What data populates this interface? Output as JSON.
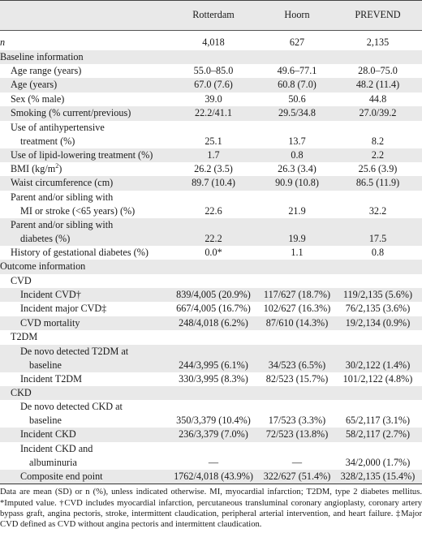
{
  "header": {
    "col0": "",
    "col1": "Rotterdam",
    "col2": "Hoorn",
    "col3": "PREVEND"
  },
  "n_row": {
    "label": "n",
    "values": [
      "4,018",
      "627",
      "2,135"
    ]
  },
  "sections": {
    "baseline": "Baseline information",
    "outcome": "Outcome information",
    "cvd": "CVD",
    "t2dm": "T2DM",
    "ckd": "CKD"
  },
  "rows": {
    "age_range": {
      "label": "Age range (years)",
      "values": [
        "55.0–85.0",
        "49.6–77.1",
        "28.0–75.0"
      ]
    },
    "age": {
      "label": "Age (years)",
      "values": [
        "67.0 (7.6)",
        "60.8 (7.0)",
        "48.2 (11.4)"
      ]
    },
    "sex": {
      "label": "Sex (% male)",
      "values": [
        "39.0",
        "50.6",
        "44.8"
      ]
    },
    "smoking": {
      "label": "Smoking (% current/previous)",
      "values": [
        "22.2/41.1",
        "29.5/34.8",
        "27.0/39.2"
      ]
    },
    "antihyp": {
      "label1": "Use of antihypertensive",
      "label2": "treatment (%)",
      "values": [
        "25.1",
        "13.7",
        "8.2"
      ]
    },
    "lipid": {
      "label": "Use of lipid-lowering treatment (%)",
      "values": [
        "1.7",
        "0.8",
        "2.2"
      ]
    },
    "bmi": {
      "label": "BMI (kg/m",
      "sup": "2",
      "label_end": ")",
      "values": [
        "26.2 (3.5)",
        "26.3 (3.4)",
        "25.6 (3.9)"
      ]
    },
    "waist": {
      "label": "Waist circumference (cm)",
      "values": [
        "89.7 (10.4)",
        "90.9 (10.8)",
        "86.5 (11.9)"
      ]
    },
    "parent_mi": {
      "label1": "Parent and/or sibling with",
      "label2": "MI or stroke (<65 years) (%)",
      "values": [
        "22.6",
        "21.9",
        "32.2"
      ]
    },
    "parent_diab": {
      "label1": "Parent and/or sibling with",
      "label2": "diabetes (%)",
      "values": [
        "22.2",
        "19.9",
        "17.5"
      ]
    },
    "gest": {
      "label": "History of gestational diabetes (%)",
      "values": [
        "0.0*",
        "1.1",
        "0.8"
      ]
    },
    "inc_cvd": {
      "label": "Incident CVD†",
      "values": [
        "839/4,005 (20.9%)",
        "117/627 (18.7%)",
        "119/2,135 (5.6%)"
      ]
    },
    "inc_major": {
      "label": "Incident major CVD‡",
      "values": [
        "667/4,005 (16.7%)",
        "102/627 (16.3%)",
        "76/2,135 (3.6%)"
      ]
    },
    "cvd_mort": {
      "label": "CVD mortality",
      "values": [
        "248/4,018 (6.2%)",
        "87/610 (14.3%)",
        "19/2,134 (0.9%)"
      ]
    },
    "denovo_t2dm": {
      "label1": "De novo detected T2DM at",
      "label2": "baseline",
      "values": [
        "244/3,995 (6.1%)",
        "34/523 (6.5%)",
        "30/2,122 (1.4%)"
      ]
    },
    "inc_t2dm": {
      "label": "Incident T2DM",
      "values": [
        "330/3,995 (8.3%)",
        "82/523 (15.7%)",
        "101/2,122 (4.8%)"
      ]
    },
    "denovo_ckd": {
      "label1": "De novo detected CKD at",
      "label2": "baseline",
      "values": [
        "350/3,379 (10.4%)",
        "17/523 (3.3%)",
        "65/2,117 (3.1%)"
      ]
    },
    "inc_ckd": {
      "label": "Incident CKD",
      "values": [
        "236/3,379 (7.0%)",
        "72/523 (13.8%)",
        "58/2,117 (2.7%)"
      ]
    },
    "inc_ckd_alb": {
      "label1": "Incident CKD and",
      "label2": "albuminuria",
      "values": [
        "—",
        "—",
        "34/2,000 (1.7%)"
      ]
    },
    "composite": {
      "label": "Composite end point",
      "values": [
        "1762/4,018 (43.9%)",
        "322/627 (51.4%)",
        "328/2,135 (15.4%)"
      ]
    }
  },
  "footnote": "Data are mean (SD) or n (%), unless indicated otherwise. MI, myocardial infarction; T2DM, type 2 diabetes mellitus. *Imputed value. †CVD includes myocardial infarction, percutaneous transluminal coronary angioplasty, coronary artery bypass graft, angina pectoris, stroke, intermittent claudication, peripheral arterial intervention, and heart failure. ‡Major CVD defined as CVD without angina pectoris and intermittent claudication."
}
